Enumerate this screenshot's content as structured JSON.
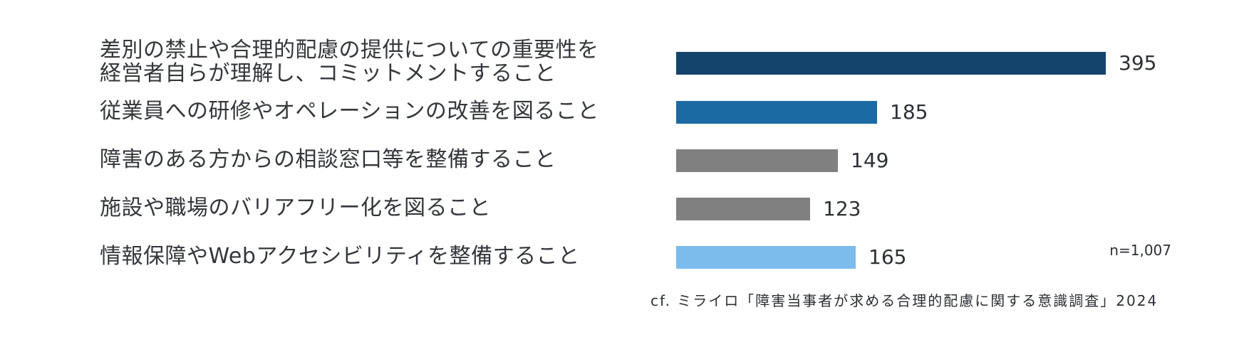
{
  "chart_data": {
    "type": "bar",
    "orientation": "horizontal",
    "title": "",
    "xlabel": "",
    "ylabel": "",
    "categories": [
      "差別の禁止や合理的配慮の提供についての重要性を\n経営者自らが理解し、コミットメントすること",
      "従業員への研修やオペレーションの改善を図ること",
      "障害のある方からの相談窓口等を整備すること",
      "施設や職場のバリアフリー化を図ること",
      "情報保障やWebアクセシビリティを整備すること"
    ],
    "values": [
      395,
      185,
      149,
      123,
      165
    ],
    "value_labels": [
      "395",
      "185",
      "149",
      "123",
      "165"
    ],
    "colors": [
      "#14446b",
      "#1b6aa3",
      "#808080",
      "#808080",
      "#7bbcec"
    ],
    "xlim": [
      0,
      395
    ],
    "grid": false,
    "legend": "none"
  },
  "notes": {
    "sample_size": "n=1,007",
    "source": "cf. ミライロ「障害当事者が求める合理的配慮に関する意識調査」2024"
  }
}
